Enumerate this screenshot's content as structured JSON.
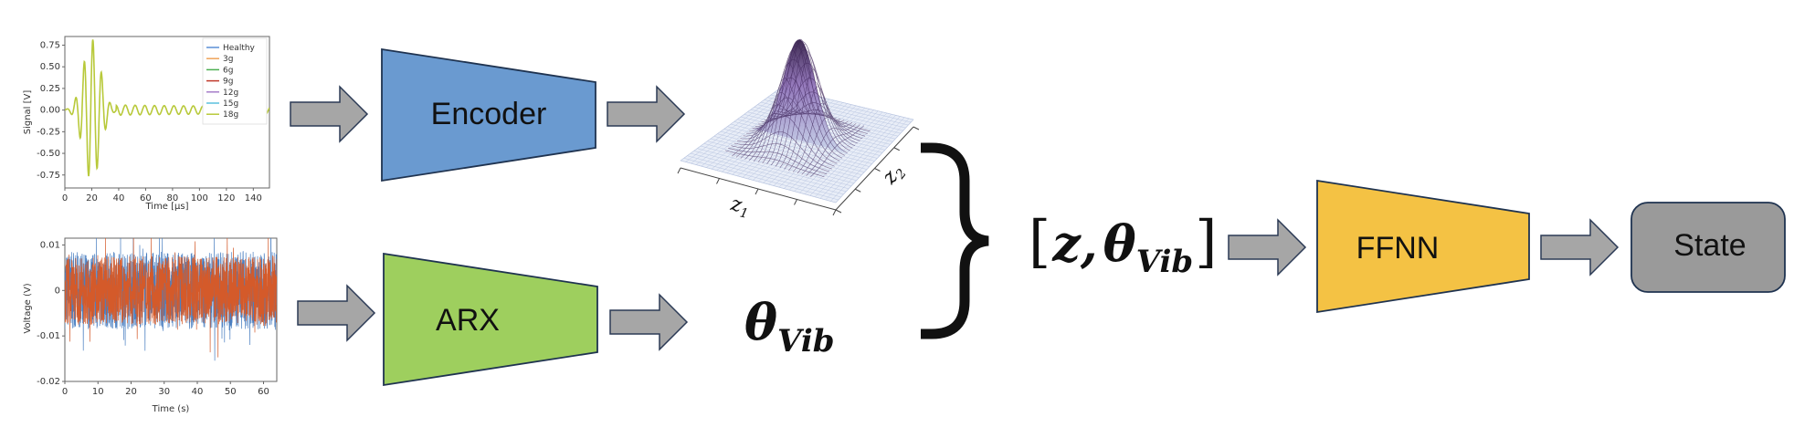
{
  "plot_top": {
    "ylabel": "Signal [V]",
    "xlabel": "Time [μs]",
    "yticks": [
      "0.75",
      "0.50",
      "0.25",
      "0.00",
      "-0.25",
      "-0.50",
      "-0.75"
    ],
    "xticks": [
      "0",
      "20",
      "40",
      "60",
      "80",
      "100",
      "120",
      "140"
    ],
    "legend": [
      {
        "label": "Healthy",
        "color": "#5b8fd6"
      },
      {
        "label": "3g",
        "color": "#f0a35a"
      },
      {
        "label": "6g",
        "color": "#4caf50"
      },
      {
        "label": "9g",
        "color": "#c0392b"
      },
      {
        "label": "12g",
        "color": "#a77dc9"
      },
      {
        "label": "15g",
        "color": "#5bc0de"
      },
      {
        "label": "18g",
        "color": "#b8c93a"
      }
    ]
  },
  "plot_bottom": {
    "ylabel": "Voltage (V)",
    "xlabel": "Time (s)",
    "yticks": [
      "0.01",
      "0",
      "-0.01",
      "-0.02"
    ],
    "xticks": [
      "0",
      "10",
      "20",
      "30",
      "40",
      "50",
      "60"
    ],
    "series_colors": [
      "#4a7fc1",
      "#d45a2a"
    ]
  },
  "blocks": {
    "encoder": {
      "label": "Encoder",
      "color": "#6a9ad0"
    },
    "arx": {
      "label": "ARX",
      "color": "#9ecf5e"
    },
    "ffnn": {
      "label": "FFNN",
      "color": "#f4c244"
    },
    "state": {
      "label": "State",
      "color": "#9a9a9a"
    }
  },
  "latent": {
    "axis1": "z",
    "axis1_sub": "1",
    "axis2": "z",
    "axis2_sub": "2"
  },
  "math": {
    "theta": "θ",
    "theta_sub": "Vib",
    "concat_open": "[",
    "concat_z": "z,",
    "concat_close": "]"
  }
}
